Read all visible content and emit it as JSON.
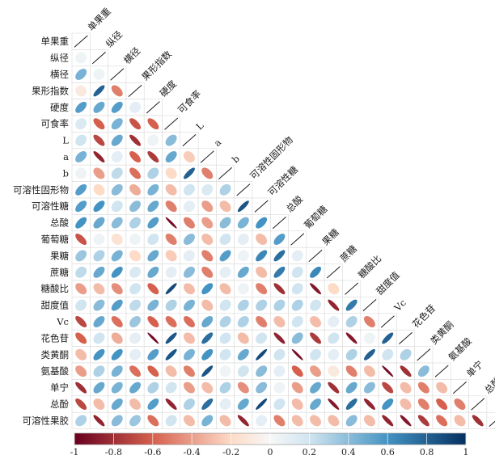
{
  "chart_data": {
    "type": "heatmap",
    "subtype": "correlation-ellipse-lower-triangle",
    "variables": [
      "单果重",
      "纵径",
      "横径",
      "果形指数",
      "硬度",
      "可食率",
      "L",
      "a",
      "b",
      "可溶性固形物",
      "可溶性糖",
      "总酸",
      "葡萄糖",
      "果糖",
      "蔗糖",
      "糖酸比",
      "甜度值",
      "Vc",
      "花色苷",
      "类黄酮",
      "氨基酸",
      "单宁",
      "总酚",
      "可溶性果胶"
    ],
    "matrix": [
      [
        1
      ],
      [
        0.05,
        1
      ],
      [
        0.45,
        0.05,
        1
      ],
      [
        -0.1,
        0.8,
        -0.5,
        1
      ],
      [
        0.55,
        0.5,
        0.55,
        0.1,
        1
      ],
      [
        0.15,
        -0.6,
        0.45,
        -0.65,
        -0.6,
        1
      ],
      [
        0.2,
        -0.7,
        0.5,
        -0.8,
        0.05,
        0.4,
        1
      ],
      [
        0.45,
        -0.85,
        0.1,
        -0.6,
        -0.75,
        0.5,
        -0.25,
        1
      ],
      [
        0.05,
        -0.4,
        0.25,
        -0.55,
        0.3,
        -0.2,
        0.8,
        -0.5,
        1
      ],
      [
        0.55,
        -0.2,
        0.4,
        -0.35,
        0.45,
        -0.3,
        0.2,
        0.15,
        0.3,
        1
      ],
      [
        0.55,
        0.6,
        0.2,
        0.4,
        0.5,
        -0.5,
        0.1,
        -0.4,
        -0.3,
        0.85,
        1
      ],
      [
        0.6,
        0.5,
        0.4,
        0.3,
        0.55,
        -0.95,
        -0.5,
        -0.4,
        0.4,
        0.45,
        0.6,
        1
      ],
      [
        -0.65,
        0.05,
        -0.15,
        0.05,
        0.2,
        -0.5,
        0.4,
        -0.3,
        0.2,
        0.1,
        -0.3,
        0.55,
        1
      ],
      [
        0.35,
        0.3,
        0.45,
        -0.2,
        0.5,
        -0.25,
        0.1,
        -0.5,
        0.55,
        0.05,
        0.65,
        0.75,
        0.1,
        1
      ],
      [
        0.25,
        0.5,
        0.6,
        0.15,
        0.5,
        0.1,
        0.4,
        -0.5,
        0.1,
        0.5,
        -0.3,
        0.7,
        0.2,
        0.65,
        1
      ],
      [
        -0.4,
        -0.3,
        -0.45,
        0.2,
        -0.6,
        0.9,
        -0.3,
        0.6,
        -0.3,
        0.05,
        -0.5,
        -0.8,
        0.2,
        -0.9,
        -0.2,
        1
      ],
      [
        0.2,
        0.4,
        0.55,
        0.25,
        0.45,
        0.3,
        0.45,
        -0.3,
        0.2,
        0.3,
        0.3,
        0.3,
        0.3,
        0.2,
        -0.85,
        0.7,
        1
      ],
      [
        -0.7,
        0.5,
        -0.55,
        0.35,
        -0.6,
        -0.55,
        -0.55,
        0.5,
        0.3,
        0.3,
        -0.5,
        -0.3,
        0.2,
        -0.3,
        0.1,
        0.3,
        -0.5,
        1
      ],
      [
        -0.6,
        0.2,
        -0.35,
        0.1,
        -0.95,
        0.85,
        -0.3,
        0.75,
        0.2,
        -0.3,
        0.2,
        -0.85,
        0.4,
        -0.75,
        0.2,
        -0.9,
        0.05,
        0.8,
        1
      ],
      [
        -0.3,
        0.6,
        0.6,
        0.1,
        0.55,
        0.85,
        0.45,
        0.6,
        0.2,
        0.5,
        0.9,
        0.2,
        -0.95,
        0.2,
        0.1,
        0.3,
        0.8,
        0.2,
        0.3,
        1
      ],
      [
        -0.4,
        0.3,
        0.45,
        -0.55,
        -0.6,
        -0.3,
        -0.5,
        0.85,
        0.05,
        0.2,
        0.4,
        0.1,
        -0.6,
        -0.4,
        -0.1,
        -0.5,
        -0.3,
        -0.95,
        -0.8,
        0.4,
        1
      ],
      [
        -0.8,
        0.5,
        0.45,
        0.5,
        0.3,
        0.2,
        -0.4,
        -0.3,
        0.3,
        -0.45,
        0.4,
        0.05,
        -0.4,
        0.5,
        -0.8,
        0.5,
        0.4,
        -0.7,
        -0.3,
        -0.5,
        -0.3,
        1
      ],
      [
        -0.7,
        -0.3,
        0.5,
        -0.3,
        0.55,
        -0.85,
        0.3,
        0.75,
        0.1,
        0.5,
        0.9,
        0.2,
        -0.3,
        0.5,
        -0.9,
        0.75,
        -0.85,
        0.6,
        -0.3,
        -0.5,
        -0.6,
        -0.5,
        1
      ],
      [
        0.3,
        -0.85,
        0.4,
        0.35,
        -0.55,
        0.2,
        -0.3,
        0.45,
        -0.3,
        -0.85,
        0.1,
        -0.5,
        -0.3,
        -0.3,
        -0.3,
        0.4,
        -0.3,
        -0.85,
        -0.9,
        -0.75,
        -0.55,
        -0.3,
        -0.8,
        1
      ]
    ],
    "colorbar": {
      "range": [
        -1,
        1
      ],
      "ticks": [
        -1,
        -0.8,
        -0.6,
        -0.4,
        -0.2,
        0,
        0.2,
        0.4,
        0.6,
        0.8,
        1
      ],
      "tick_labels": [
        "-1",
        "-0.8",
        "-0.6",
        "-0.4",
        "-0.2",
        "0",
        "0.2",
        "0.4",
        "0.6",
        "0.8",
        "1"
      ],
      "neg_color": "#67001f",
      "mid_color": "#f7f7f7",
      "pos_color": "#053061"
    },
    "grid": true,
    "legend_placement": "bottom"
  }
}
